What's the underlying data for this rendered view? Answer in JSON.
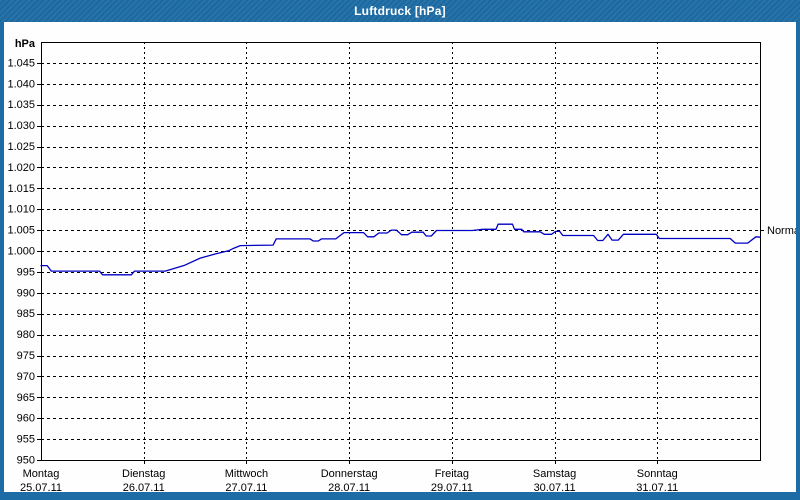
{
  "window": {
    "title": "Luftdruck [hPa]",
    "colors": {
      "frame": "#1d6ca5",
      "title_text": "#ffffff",
      "panel_bg": "#fefefe"
    }
  },
  "chart_data": {
    "type": "line",
    "title": "Luftdruck [hPa]",
    "unit_label": "hPa",
    "grid": "dashed",
    "axis_color": "#000000",
    "grid_color": "#000000",
    "x_axis": {
      "range_days": [
        0,
        7
      ],
      "days": [
        {
          "name": "Montag",
          "date": "25.07.11"
        },
        {
          "name": "Dienstag",
          "date": "26.07.11"
        },
        {
          "name": "Mittwoch",
          "date": "27.07.11"
        },
        {
          "name": "Donnerstag",
          "date": "28.07.11"
        },
        {
          "name": "Freitag",
          "date": "29.07.11"
        },
        {
          "name": "Samstag",
          "date": "30.07.11"
        },
        {
          "name": "Sonntag",
          "date": "31.07.11"
        }
      ]
    },
    "y_axis": {
      "min": 950,
      "max": 1050,
      "tick_step": 5,
      "tick_values": [
        950,
        955,
        960,
        965,
        970,
        975,
        980,
        985,
        990,
        995,
        1000,
        1005,
        1010,
        1015,
        1020,
        1025,
        1030,
        1035,
        1040,
        1045
      ],
      "tick_labels": [
        "950",
        "955",
        "960",
        "965",
        "970",
        "975",
        "980",
        "985",
        "990",
        "995",
        "1.000",
        "1.005",
        "1.010",
        "1.015",
        "1.020",
        "1.025",
        "1.030",
        "1.035",
        "1.040",
        "1.045"
      ]
    },
    "reference_line": {
      "label": "Normal",
      "value": 1005
    },
    "series": [
      {
        "name": "Luftdruck",
        "color": "#0000c4",
        "points": [
          [
            0.0,
            996.5
          ],
          [
            0.06,
            996.5
          ],
          [
            0.1,
            995.2
          ],
          [
            0.57,
            995.2
          ],
          [
            0.6,
            994.3
          ],
          [
            0.88,
            994.3
          ],
          [
            0.91,
            995.2
          ],
          [
            1.21,
            995.2
          ],
          [
            1.4,
            996.6
          ],
          [
            1.55,
            998.3
          ],
          [
            1.7,
            999.3
          ],
          [
            1.83,
            1000.1
          ],
          [
            1.88,
            1000.7
          ],
          [
            1.94,
            1001.3
          ],
          [
            2.26,
            1001.4
          ],
          [
            2.29,
            1002.9
          ],
          [
            2.62,
            1002.9
          ],
          [
            2.65,
            1002.4
          ],
          [
            2.7,
            1002.4
          ],
          [
            2.73,
            1002.9
          ],
          [
            2.87,
            1002.9
          ],
          [
            2.95,
            1004.4
          ],
          [
            3.14,
            1004.4
          ],
          [
            3.18,
            1003.4
          ],
          [
            3.24,
            1003.4
          ],
          [
            3.29,
            1004.3
          ],
          [
            3.37,
            1004.3
          ],
          [
            3.41,
            1005.0
          ],
          [
            3.46,
            1005.0
          ],
          [
            3.51,
            1003.9
          ],
          [
            3.57,
            1003.9
          ],
          [
            3.61,
            1004.5
          ],
          [
            3.72,
            1004.5
          ],
          [
            3.75,
            1003.6
          ],
          [
            3.8,
            1003.6
          ],
          [
            3.85,
            1004.9
          ],
          [
            4.2,
            1004.9
          ],
          [
            4.3,
            1005.2
          ],
          [
            4.43,
            1005.2
          ],
          [
            4.45,
            1006.4
          ],
          [
            4.59,
            1006.4
          ],
          [
            4.61,
            1005.2
          ],
          [
            4.68,
            1005.2
          ],
          [
            4.7,
            1004.6
          ],
          [
            4.86,
            1004.6
          ],
          [
            4.9,
            1004.0
          ],
          [
            4.97,
            1004.0
          ],
          [
            5.01,
            1004.7
          ],
          [
            5.05,
            1004.7
          ],
          [
            5.08,
            1003.7
          ],
          [
            5.38,
            1003.7
          ],
          [
            5.42,
            1002.5
          ],
          [
            5.47,
            1002.5
          ],
          [
            5.52,
            1004.0
          ],
          [
            5.56,
            1002.6
          ],
          [
            5.62,
            1002.6
          ],
          [
            5.67,
            1004.0
          ],
          [
            5.99,
            1004.0
          ],
          [
            6.02,
            1003.0
          ],
          [
            6.71,
            1003.0
          ],
          [
            6.76,
            1001.9
          ],
          [
            6.88,
            1001.9
          ],
          [
            6.96,
            1003.4
          ],
          [
            7.0,
            1003.3
          ]
        ]
      }
    ]
  }
}
